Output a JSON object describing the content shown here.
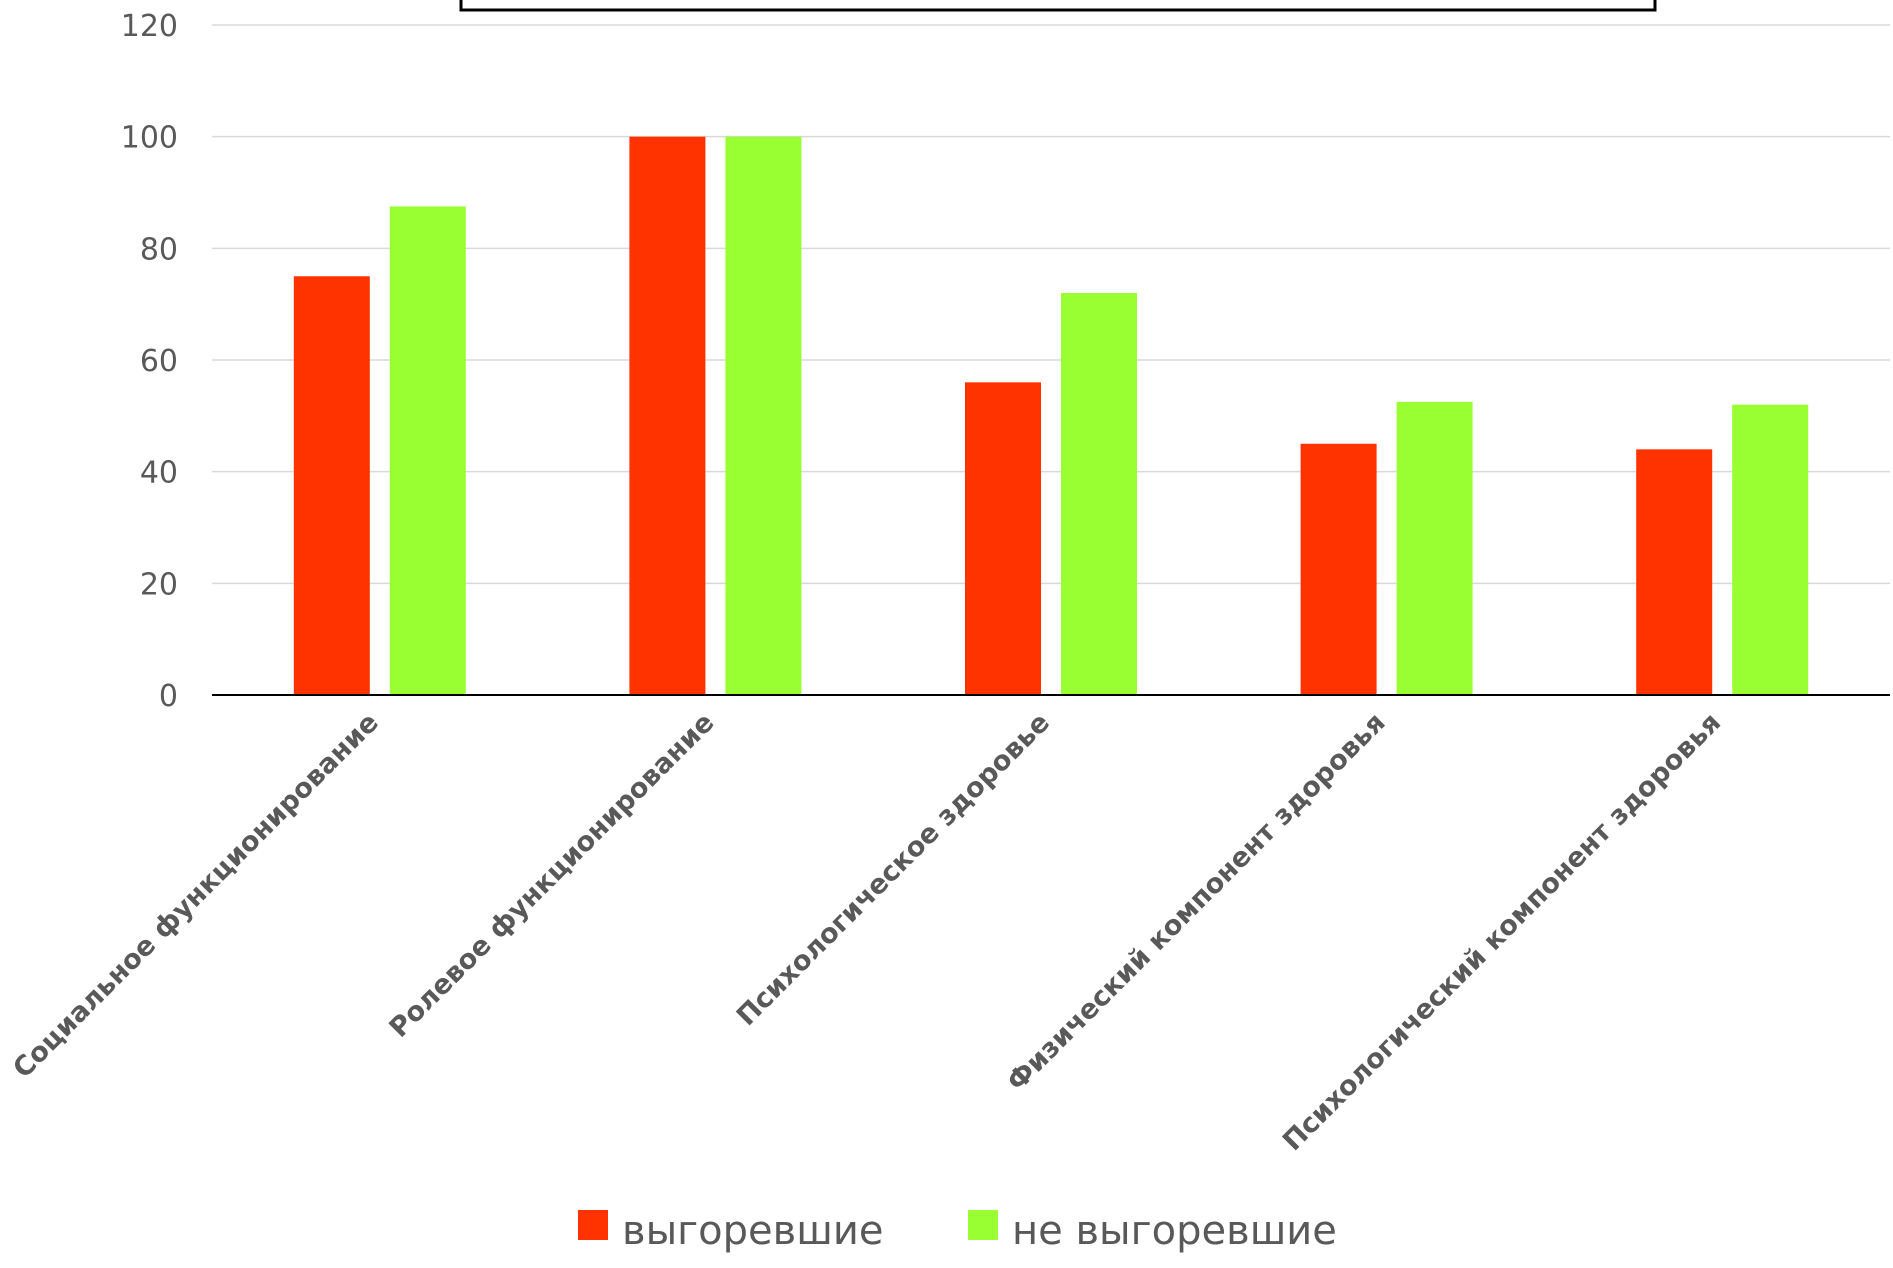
{
  "chart_data": {
    "type": "bar",
    "title": "",
    "xlabel": "",
    "ylabel": "",
    "ylim": [
      0,
      120
    ],
    "yticks": [
      0,
      20,
      40,
      60,
      80,
      100,
      120
    ],
    "grid": true,
    "legend_position": "bottom",
    "categories": [
      "Социальное функционирование",
      "Ролевое функционирование",
      "Психологическое здоровье",
      "Физический компонент здоровья",
      "Психологический компонент здоровья"
    ],
    "series": [
      {
        "name": "выгоревшие",
        "color": "#ff3300",
        "values": [
          75,
          100,
          56,
          45,
          44
        ]
      },
      {
        "name": "не выгоревшие",
        "color": "#99ff33",
        "values": [
          87.5,
          100,
          72,
          52.5,
          52
        ]
      }
    ]
  }
}
